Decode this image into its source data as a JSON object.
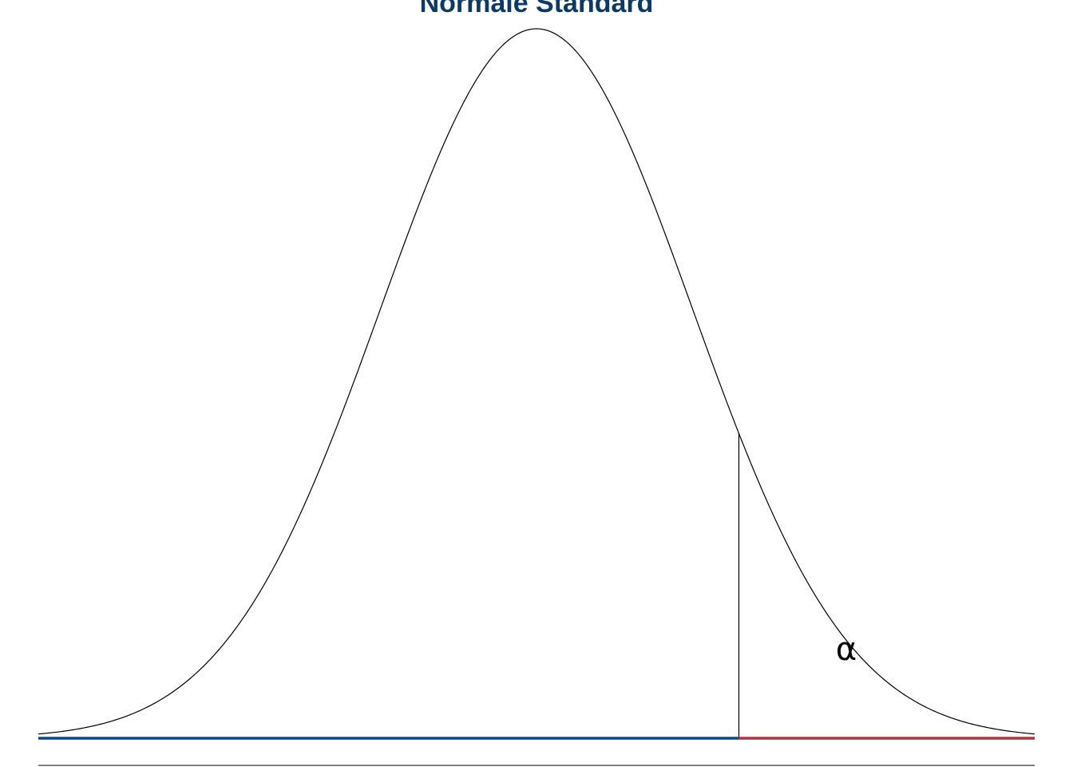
{
  "title": "Normale Standard",
  "alpha_label": "α",
  "colors": {
    "title": "#0b3a6a",
    "curve": "#000000",
    "acceptance_region": "#0b4a80",
    "rejection_region": "#b5323e",
    "critical_line": "#000000",
    "baseline": "#000000"
  },
  "chart_data": {
    "type": "line",
    "distribution": "standard-normal",
    "mean": 0,
    "sd": 1,
    "xlim": [
      -3.2,
      3.2
    ],
    "critical_value": 1.3,
    "tail": "right",
    "shaded_label": "α",
    "grid": false,
    "axis_ticks_shown": false
  }
}
